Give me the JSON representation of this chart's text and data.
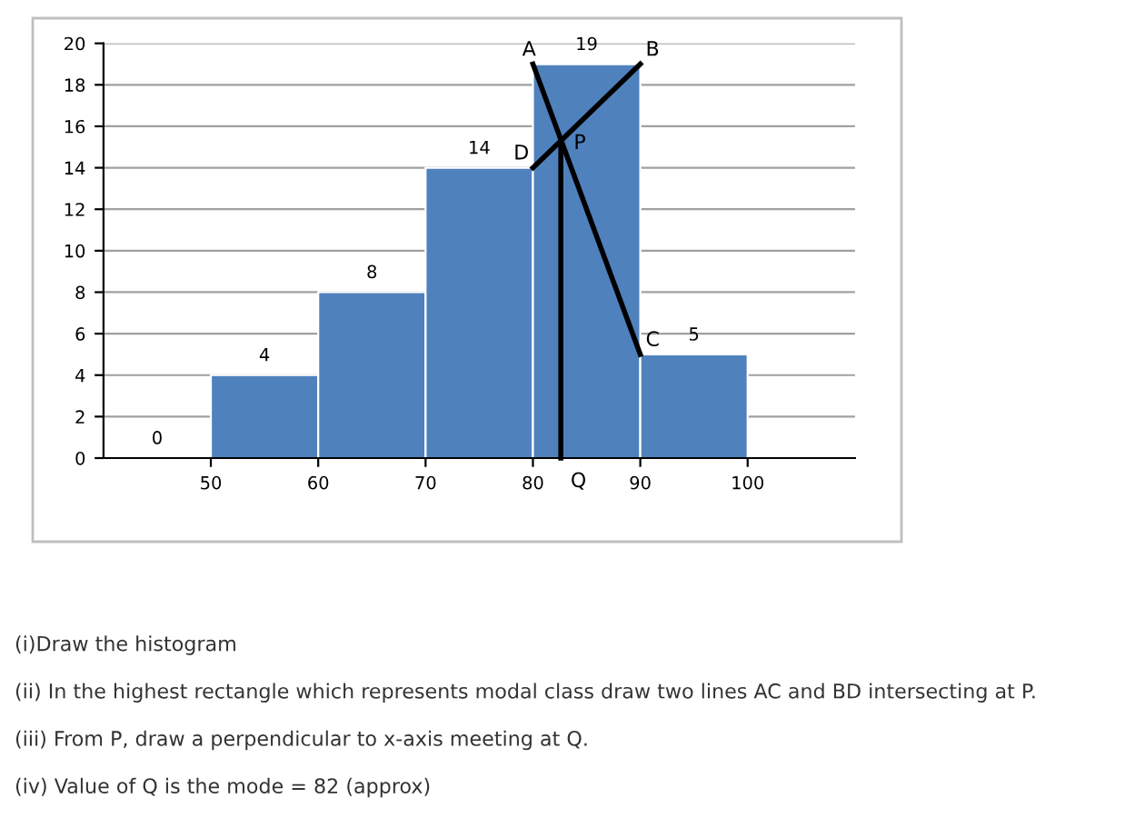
{
  "chart_data": {
    "type": "histogram",
    "bins": [
      40,
      50,
      60,
      70,
      80,
      90,
      100
    ],
    "values": [
      0,
      4,
      8,
      14,
      19,
      5
    ],
    "color": "#4f81bd",
    "value_labels": [
      "0",
      "4",
      "8",
      "14",
      "19",
      "5"
    ],
    "xlim": [
      40,
      110
    ],
    "xticks": [
      50,
      60,
      70,
      80,
      90,
      100
    ],
    "ylim": [
      0,
      20
    ],
    "yticks": [
      0,
      2,
      4,
      6,
      8,
      10,
      12,
      14,
      16,
      18,
      20
    ],
    "grid": "y",
    "series": [
      {
        "type": "line",
        "color": "#000000",
        "x": [
          80,
          90
        ],
        "values": [
          19,
          5
        ]
      },
      {
        "type": "line",
        "color": "#000000",
        "x": [
          90,
          80
        ],
        "values": [
          19,
          14
        ]
      },
      {
        "type": "line",
        "color": "#000000",
        "x": [
          82.6,
          82.6
        ],
        "values": [
          15.3,
          0
        ]
      }
    ],
    "annotations": [
      {
        "text": "A",
        "x": 80,
        "y": 19
      },
      {
        "text": "B",
        "x": 90,
        "y": 19
      },
      {
        "text": "C",
        "x": 90,
        "y": 5
      },
      {
        "text": "D",
        "x": 80,
        "y": 14
      },
      {
        "text": "P",
        "x": 82.6,
        "y": 15.3
      },
      {
        "text": "Q",
        "x": 82.6,
        "y": 0
      },
      "(i)Draw the histogram",
      "(ii) In the highest rectangle which represents modal class draw two lines AC and BD intersecting at P.",
      "(iii) From P, draw a perpendicular to x-axis meeting at Q.",
      "(iv) Value of Q is the mode = 82 (approx)"
    ]
  }
}
